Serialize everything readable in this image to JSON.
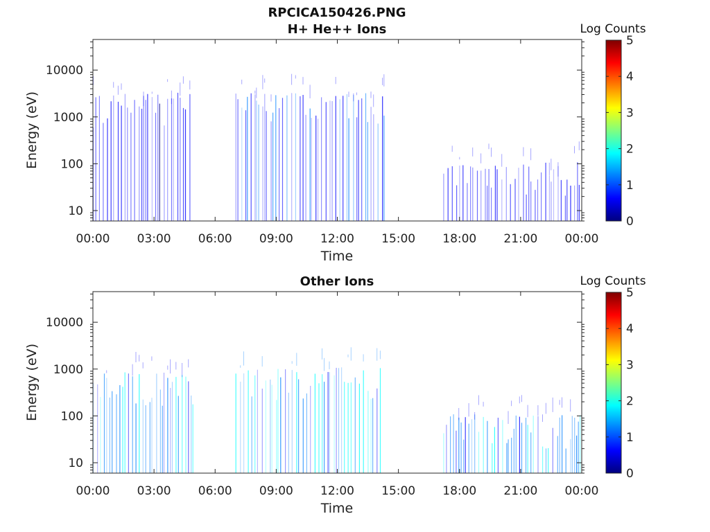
{
  "figure": {
    "title": "RPCICA150426.PNG"
  },
  "colormap": [
    "#00007f",
    "#0000ff",
    "#007fff",
    "#00ffff",
    "#7fff7f",
    "#ffff00",
    "#ff7f00",
    "#ff0000",
    "#7f0000"
  ],
  "chart_data": [
    {
      "type": "heatmap",
      "title": "H+ He++ Ions",
      "xlabel": "Time",
      "ylabel": "Energy (eV)",
      "x_ticks": [
        "00:00",
        "03:00",
        "06:00",
        "09:00",
        "12:00",
        "15:00",
        "18:00",
        "21:00",
        "00:00"
      ],
      "x_range_hours": [
        0,
        24
      ],
      "y_scale": "log",
      "y_ticks": [
        "10",
        "100",
        "1000",
        "10000"
      ],
      "y_range": [
        6,
        45000
      ],
      "colorbar": {
        "label": "Log Counts",
        "ticks": [
          "0",
          "1",
          "2",
          "3",
          "4",
          "5"
        ],
        "range": [
          0,
          5
        ]
      },
      "activity_windows_hours": [
        {
          "start": 0.0,
          "end": 4.9,
          "e_max": 3000,
          "level": 0.6
        },
        {
          "start": 7.0,
          "end": 14.3,
          "e_max": 3000,
          "level": 0.9
        },
        {
          "start": 17.2,
          "end": 23.9,
          "e_max": 100,
          "level": 0.6
        }
      ]
    },
    {
      "type": "heatmap",
      "title": "Other Ions",
      "xlabel": "Time",
      "ylabel": "Energy (eV)",
      "x_ticks": [
        "00:00",
        "03:00",
        "06:00",
        "09:00",
        "12:00",
        "15:00",
        "18:00",
        "21:00",
        "00:00"
      ],
      "x_range_hours": [
        0,
        24
      ],
      "y_scale": "log",
      "y_ticks": [
        "10",
        "100",
        "1000",
        "10000"
      ],
      "y_range": [
        6,
        45000
      ],
      "colorbar": {
        "label": "Log Counts",
        "ticks": [
          "0",
          "1",
          "2",
          "3",
          "4",
          "5"
        ],
        "range": [
          0,
          5
        ]
      },
      "activity_windows_hours": [
        {
          "start": 0.0,
          "end": 4.9,
          "e_max": 800,
          "level": 1.4
        },
        {
          "start": 7.0,
          "end": 14.3,
          "e_max": 1000,
          "level": 1.6
        },
        {
          "start": 17.2,
          "end": 23.9,
          "e_max": 100,
          "level": 1.4
        }
      ]
    }
  ]
}
